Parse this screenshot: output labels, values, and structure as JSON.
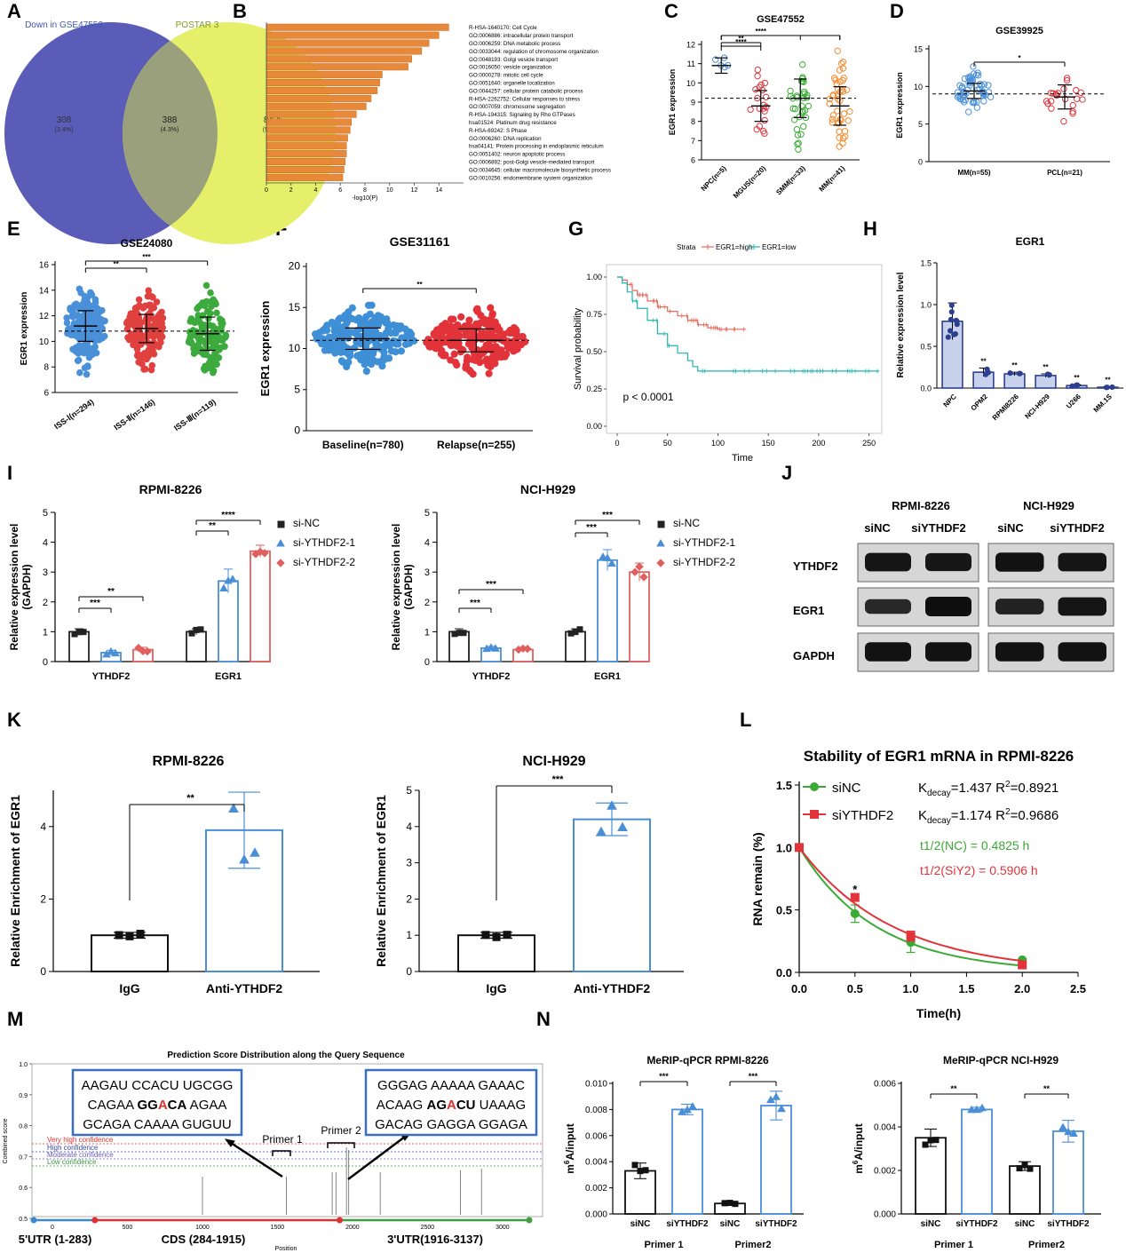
{
  "panel_labels": [
    "A",
    "B",
    "C",
    "D",
    "E",
    "F",
    "G",
    "H",
    "I",
    "J",
    "K",
    "L",
    "M",
    "N"
  ],
  "venn": {
    "left_title": "Down in GSE47552",
    "right_title": "POSTAR 3",
    "left_only": "308",
    "left_only_pct": "(3.4%)",
    "both": "388",
    "both_pct": "(4.3%)",
    "right_only": "8425",
    "right_only_pct": "(92.4%)",
    "colors": {
      "left": "#5a5cb8",
      "right": "#e6ef6a",
      "overlap": "#9aa07c"
    }
  },
  "western": {
    "cell_lines": [
      "RPMI-8226",
      "NCI-H929"
    ],
    "lanes": [
      "siNC",
      "siYTHDF2",
      "siNC",
      "siYTHDF2"
    ],
    "proteins": [
      "YTHDF2",
      "EGR1",
      "GAPDH"
    ]
  },
  "decay_text": {
    "k_nc": "K",
    "k_nc_sub": "decay",
    "k_nc_val": "=1.437 R",
    "k_nc_r2": "=0.8921",
    "k_si": "K",
    "k_si_sub": "decay",
    "k_si_val": "=1.174 R",
    "k_si_r2": "=0.9686",
    "sup2": "2",
    "t_nc": "t1/2(NC)    = 0.4825 h",
    "t_si": "t1/2(SiY2)   = 0.5906 h"
  },
  "prediction": {
    "title": "Prediction Score Distribution along the Query Sequence",
    "ylabel": "Combined score",
    "xlabel": "Position",
    "levels": [
      "Very high confidence",
      "High confidence",
      "Moderate confidence",
      "Low confidence"
    ],
    "primers": [
      "Primer 1",
      "Primer 2"
    ],
    "seq_left": [
      [
        "AAGAU CCACU UGCGG"
      ],
      [
        "CAGAA ",
        "GG",
        "A",
        "CA",
        " AGAA"
      ],
      [
        "GCAGA CAAAA GUGUU"
      ]
    ],
    "seq_right": [
      [
        "GGGAG AAAAA GAAAC"
      ],
      [
        "ACAAG ",
        "AG",
        "A",
        "CU",
        " UAAAG"
      ],
      [
        "GACAG GAGGA GGAGA"
      ]
    ],
    "regions": [
      "5'UTR (1-283)",
      "CDS (284-1915)",
      "3'UTR(1916-3137)"
    ],
    "xticks": [
      "0",
      "500",
      "1000",
      "1500",
      "2000",
      "2500",
      "3000"
    ],
    "yticks": [
      "0.5",
      "0.6",
      "0.7",
      "0.8",
      "0.9",
      "1.0"
    ]
  },
  "merip": {
    "header_left": "MeRIP-qPCR  RPMI-8226",
    "header_right": "MeRIP-qPCR  NCI-H929",
    "ylabel_m": "m",
    "ylabel_sup": "6",
    "ylabel_rest": "A/input",
    "primer_labels": [
      "Primer 1",
      "Primer2"
    ]
  },
  "chart_data": [
    {
      "panel": "B",
      "type": "bar",
      "orientation": "horizontal",
      "xlabel": "-log10(P)",
      "xlim": [
        0,
        16
      ],
      "xticks": [
        0,
        2,
        4,
        6,
        8,
        10,
        12,
        14
      ],
      "color": "#e8893a",
      "categories": [
        "R-HSA-1640170: Cell Cycle",
        "GO:0006886: intracellular protein transport",
        "GO:0006259: DNA metabolic process",
        "GO:0033044: regulation of chromosome organization",
        "GO:0048193: Golgi vesicle transport",
        "GO:0016050: vesicle organization",
        "GO:0000278: mitotic cell cycle",
        "GO:0051640: organelle localization",
        "GO:0044257: cellular protein catabolic process",
        "R-HSA-2262752: Cellular responses to stress",
        "GO:0007059: chromosome segregation",
        "R-HSA-194315: Signaling by Rho GTPases",
        "hsa01524: Platinum drug resistance",
        "R-HSA-69242: S Phase",
        "GO:0006260: DNA replication",
        "hsa04141: Protein processing in endoplasmic reticulum",
        "GO:0051402: neuron apoptotic process",
        "GO:0006892: post-Golgi vesicle-mediated transport",
        "GO:0034645: cellular macromolecule biosynthetic process",
        "GO:0010256: endomembrane system organization"
      ],
      "values": [
        14.8,
        14.0,
        13.2,
        12.6,
        11.8,
        11.5,
        9.4,
        9.2,
        9.0,
        8.5,
        8.1,
        7.3,
        6.9,
        6.8,
        6.6,
        6.5,
        6.5,
        6.4,
        6.3,
        6.2
      ]
    },
    {
      "panel": "C",
      "type": "scatter",
      "title": "GSE47552",
      "ylabel": "EGR1 expression",
      "ylim": [
        6,
        12
      ],
      "yticks": [
        6,
        7,
        8,
        9,
        10,
        11,
        12
      ],
      "categories": [
        "NPC(n=5)",
        "MGUS(n=20)",
        "SMM(n=33)",
        "MM(n=41)"
      ],
      "means": [
        10.9,
        8.8,
        9.2,
        8.8
      ],
      "sd": [
        0.4,
        0.8,
        1.0,
        1.0
      ],
      "n": [
        5,
        20,
        33,
        41
      ],
      "colors": [
        "#4a8fd6",
        "#d9363e",
        "#3aaa35",
        "#f28a2e"
      ],
      "spread": [
        0.35,
        0.85,
        1.0,
        1.05
      ],
      "comparisons": [
        {
          "a": 0,
          "b": 1,
          "label": "**"
        },
        {
          "a": 0,
          "b": 1,
          "label": "****"
        },
        {
          "a": 0,
          "b": 2,
          "label": "****"
        },
        {
          "a": 0,
          "b": 3,
          "label": ""
        }
      ],
      "ref_line": 9.2
    },
    {
      "panel": "D",
      "type": "scatter",
      "title": "GSE39925",
      "ylabel": "EGR1 expression",
      "ylim": [
        0,
        15
      ],
      "yticks": [
        0,
        5,
        10,
        15
      ],
      "categories": [
        "MM(n=55)",
        "PCL(n=21)"
      ],
      "means": [
        9.4,
        8.6
      ],
      "sd": [
        1.0,
        1.6
      ],
      "n": [
        55,
        21
      ],
      "colors": [
        "#4a8fd6",
        "#d9363e"
      ],
      "spread": [
        1.2,
        1.5
      ],
      "comparisons": [
        {
          "a": 0,
          "b": 1,
          "label": "*"
        }
      ],
      "ref_line": 9.0
    },
    {
      "panel": "E",
      "type": "scatter",
      "title": "GSE24080",
      "ylabel": "EGR1 expression",
      "ylim": [
        6,
        16
      ],
      "yticks": [
        6,
        8,
        10,
        12,
        14,
        16
      ],
      "categories": [
        "ISS-Ⅰ(n=294)",
        "ISS-Ⅱ(n=146)",
        "ISS-Ⅲ(n=119)"
      ],
      "means": [
        11.2,
        11.0,
        10.6
      ],
      "sd": [
        1.2,
        1.1,
        1.3
      ],
      "n": [
        294,
        146,
        119
      ],
      "colors": [
        "#4a90d9",
        "#e0403f",
        "#3caa3c"
      ],
      "spread": [
        1.4,
        1.3,
        1.4
      ],
      "comparisons": [
        {
          "a": 0,
          "b": 1,
          "label": "**"
        },
        {
          "a": 0,
          "b": 2,
          "label": "***"
        }
      ],
      "ref_line": 10.8
    },
    {
      "panel": "F",
      "type": "scatter",
      "title": "GSE31161",
      "ylabel": "EGR1 expression",
      "ylim": [
        0,
        20
      ],
      "yticks": [
        0,
        5,
        10,
        15,
        20
      ],
      "categories": [
        "Baseline(n=780)",
        "Relapse(n=255)"
      ],
      "means": [
        11.2,
        11.0
      ],
      "sd": [
        1.3,
        1.4
      ],
      "n": [
        780,
        255
      ],
      "colors": [
        "#3f8fd6",
        "#e2333b"
      ],
      "spread": [
        1.6,
        1.6
      ],
      "comparisons": [
        {
          "a": 0,
          "b": 1,
          "label": "**"
        }
      ],
      "ref_line": 11.0
    },
    {
      "panel": "G",
      "type": "line",
      "xlabel": "Time",
      "ylabel": "Survival probability",
      "xlim": [
        0,
        260
      ],
      "ylim": [
        0,
        1.0
      ],
      "xticks": [
        0,
        50,
        100,
        150,
        200,
        250
      ],
      "yticks": [
        0.0,
        0.25,
        0.5,
        0.75,
        1.0
      ],
      "legend_title": "Strata",
      "annotation": "p < 0.0001",
      "series": [
        {
          "name": "EGR1=high",
          "color": "#e8695c",
          "x": [
            0,
            5,
            10,
            15,
            20,
            30,
            40,
            50,
            60,
            70,
            80,
            90,
            100,
            110,
            120,
            128
          ],
          "y": [
            1.0,
            0.98,
            0.95,
            0.91,
            0.88,
            0.84,
            0.8,
            0.77,
            0.74,
            0.71,
            0.68,
            0.66,
            0.65,
            0.65,
            0.65,
            0.65
          ]
        },
        {
          "name": "EGR1=low",
          "color": "#1fb5b0",
          "x": [
            0,
            5,
            10,
            15,
            20,
            30,
            40,
            50,
            60,
            70,
            75,
            80,
            90,
            100,
            130,
            170,
            210,
            260
          ],
          "y": [
            1.0,
            0.96,
            0.9,
            0.84,
            0.79,
            0.71,
            0.62,
            0.54,
            0.49,
            0.44,
            0.4,
            0.37,
            0.37,
            0.37,
            0.37,
            0.37,
            0.37,
            0.37
          ]
        }
      ]
    },
    {
      "panel": "H",
      "type": "bar",
      "title": "EGR1",
      "ylabel": "Relative expression level",
      "ylim": [
        0,
        1.5
      ],
      "yticks": [
        0.0,
        0.5,
        1.0,
        1.5
      ],
      "categories": [
        "NPC",
        "OPM2",
        "RPMI8226",
        "NCI-H929",
        "U266",
        "MM.1S"
      ],
      "values": [
        0.8,
        0.19,
        0.17,
        0.15,
        0.03,
        0.01
      ],
      "errors": [
        0.22,
        0.05,
        0.02,
        0.02,
        0.01,
        0.005
      ],
      "labels": [
        "",
        "**",
        "**",
        "**",
        "**",
        "**"
      ],
      "color": "#2d3f8f"
    },
    {
      "panel": "I",
      "type": "bar",
      "title": "RPMI-8226",
      "ylabel": "Relative expression level\n(GAPDH)",
      "ylim": [
        0,
        5
      ],
      "yticks": [
        0,
        1,
        2,
        3,
        4,
        5
      ],
      "categories": [
        "YTHDF2",
        "EGR1"
      ],
      "series": [
        {
          "name": "si-NC",
          "values": [
            1.0,
            1.0
          ],
          "errors": [
            0.1,
            0.1
          ],
          "color": "#222222"
        },
        {
          "name": "si-YTHDF2-1",
          "values": [
            0.3,
            2.7
          ],
          "errors": [
            0.08,
            0.4
          ],
          "color": "#4a8fd6"
        },
        {
          "name": "si-YTHDF2-2",
          "values": [
            0.4,
            3.7
          ],
          "errors": [
            0.08,
            0.2
          ],
          "color": "#e06060"
        }
      ],
      "comparisons": [
        {
          "cat": 0,
          "a": 0,
          "b": 1,
          "label": "***"
        },
        {
          "cat": 0,
          "a": 0,
          "b": 2,
          "label": "**"
        },
        {
          "cat": 1,
          "a": 0,
          "b": 1,
          "label": "**"
        },
        {
          "cat": 1,
          "a": 0,
          "b": 2,
          "label": "****"
        }
      ]
    },
    {
      "panel": "I2",
      "type": "bar",
      "title": "NCI-H929",
      "ylabel": "Relative expression level\n(GAPDH)",
      "ylim": [
        0,
        5
      ],
      "yticks": [
        0,
        1,
        2,
        3,
        4,
        5
      ],
      "categories": [
        "YTHDF2",
        "EGR1"
      ],
      "series": [
        {
          "name": "si-NC",
          "values": [
            1.0,
            1.0
          ],
          "errors": [
            0.1,
            0.1
          ],
          "color": "#222222"
        },
        {
          "name": "si-YTHDF2-1",
          "values": [
            0.45,
            3.4
          ],
          "errors": [
            0.06,
            0.35
          ],
          "color": "#4a8fd6"
        },
        {
          "name": "si-YTHDF2-2",
          "values": [
            0.4,
            3.0
          ],
          "errors": [
            0.05,
            0.3
          ],
          "color": "#e06060"
        }
      ],
      "comparisons": [
        {
          "cat": 0,
          "a": 0,
          "b": 1,
          "label": "***"
        },
        {
          "cat": 0,
          "a": 0,
          "b": 2,
          "label": "***"
        },
        {
          "cat": 1,
          "a": 0,
          "b": 1,
          "label": "***"
        },
        {
          "cat": 1,
          "a": 0,
          "b": 2,
          "label": "***"
        }
      ]
    },
    {
      "panel": "K",
      "type": "bar",
      "title": "RPMI-8226",
      "ylabel": "Relative Enrichment of EGR1",
      "ylim": [
        0,
        5
      ],
      "yticks": [
        0,
        2,
        4
      ],
      "categories": [
        "IgG",
        "Anti-YTHDF2"
      ],
      "values": [
        1.0,
        3.9
      ],
      "errors": [
        0.08,
        1.05
      ],
      "colors": [
        "#111111",
        "#4a8fd6"
      ],
      "comparisons": [
        {
          "a": 0,
          "b": 1,
          "label": "**"
        }
      ]
    },
    {
      "panel": "K2",
      "type": "bar",
      "title": "NCI-H929",
      "ylabel": "Relative Enrichment of EGR1",
      "ylim": [
        0,
        5
      ],
      "yticks": [
        0,
        1,
        2,
        3,
        4,
        5
      ],
      "categories": [
        "IgG",
        "Anti-YTHDF2"
      ],
      "values": [
        1.0,
        4.2
      ],
      "errors": [
        0.08,
        0.45
      ],
      "colors": [
        "#111111",
        "#4a8fd6"
      ],
      "comparisons": [
        {
          "a": 0,
          "b": 1,
          "label": "***"
        }
      ]
    },
    {
      "panel": "L",
      "type": "line",
      "title": "Stability of EGR1 mRNA in RPMI-8226",
      "xlabel": "Time(h)",
      "ylabel": "RNA remain (%)",
      "xlim": [
        0,
        2.5
      ],
      "ylim": [
        0,
        1.5
      ],
      "xticks": [
        0.0,
        0.5,
        1.0,
        1.5,
        2.0,
        2.5
      ],
      "yticks": [
        0.0,
        0.5,
        1.0,
        1.5
      ],
      "series": [
        {
          "name": "siNC",
          "color": "#3aaa35",
          "marker": "circle",
          "k": 1.437,
          "x": [
            0,
            0.5,
            1.0,
            2.0
          ],
          "y": [
            1.0,
            0.47,
            0.24,
            0.1
          ],
          "errors": [
            0,
            0.07,
            0.08,
            0.01
          ]
        },
        {
          "name": "siYTHDF2",
          "color": "#e2333b",
          "marker": "square",
          "k": 1.174,
          "x": [
            0,
            0.5,
            1.0,
            2.0
          ],
          "y": [
            1.0,
            0.6,
            0.29,
            0.06
          ],
          "errors": [
            0,
            0.03,
            0.04,
            0.01
          ]
        }
      ],
      "annotations": [
        {
          "x": 0.5,
          "label": "*"
        }
      ]
    },
    {
      "panel": "N",
      "type": "bar",
      "ylim": [
        0,
        0.01
      ],
      "yticks": [
        "0.000",
        "0.002",
        "0.004",
        "0.006",
        "0.008",
        "0.010"
      ],
      "categories": [
        "siNC",
        "siYTHDF2",
        "siNC",
        "siYTHDF2"
      ],
      "values": [
        0.0033,
        0.008,
        0.0008,
        0.0083
      ],
      "errors": [
        0.0006,
        0.0004,
        0.0001,
        0.0011
      ],
      "colors": [
        "#111111",
        "#4a8fd6",
        "#111111",
        "#4a8fd6"
      ],
      "comparisons": [
        {
          "a": 0,
          "b": 1,
          "label": "***"
        },
        {
          "a": 2,
          "b": 3,
          "label": "***"
        }
      ]
    },
    {
      "panel": "N2",
      "type": "bar",
      "ylim": [
        0,
        0.006
      ],
      "yticks": [
        "0.000",
        "0.002",
        "0.004",
        "0.006"
      ],
      "categories": [
        "siNC",
        "siYTHDF2",
        "siNC",
        "siYTHDF2"
      ],
      "values": [
        0.0035,
        0.0048,
        0.0022,
        0.0038
      ],
      "errors": [
        0.0004,
        0.0001,
        0.0002,
        0.0005
      ],
      "colors": [
        "#111111",
        "#4a8fd6",
        "#111111",
        "#4a8fd6"
      ],
      "comparisons": [
        {
          "a": 0,
          "b": 1,
          "label": "**"
        },
        {
          "a": 2,
          "b": 3,
          "label": "**"
        }
      ]
    }
  ]
}
